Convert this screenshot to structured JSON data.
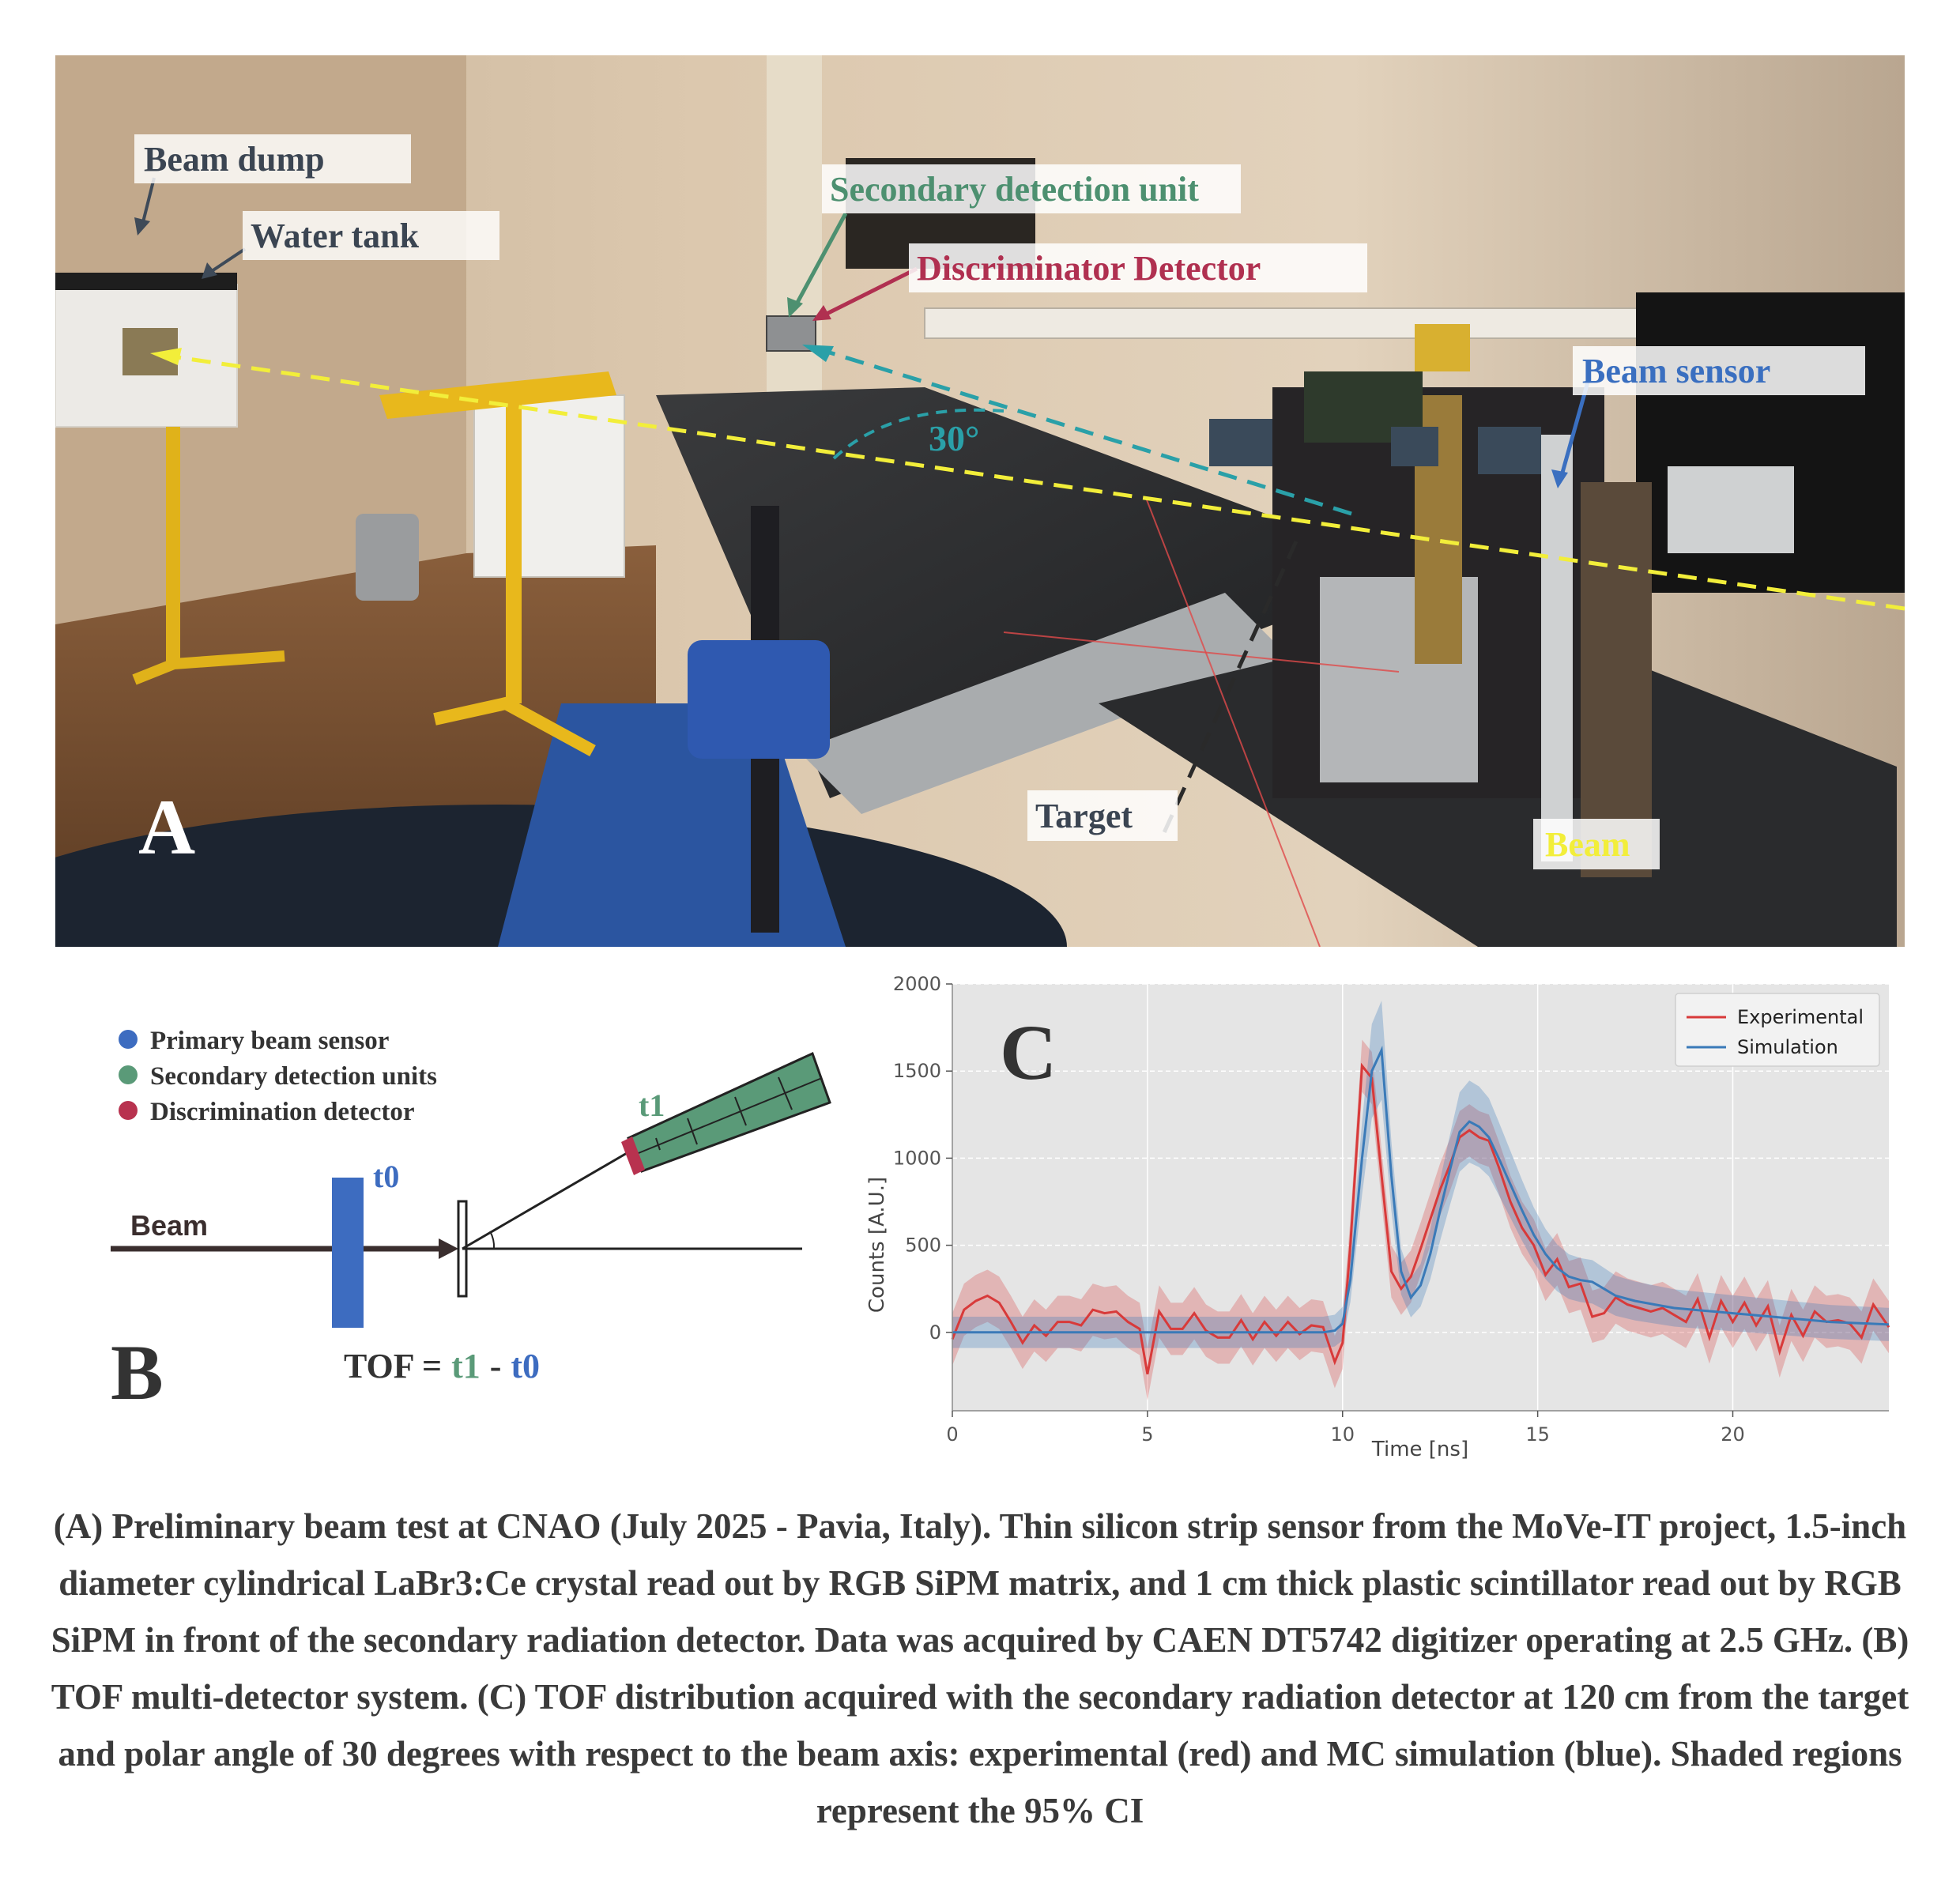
{
  "panel_a": {
    "letter": "A",
    "labels": {
      "beam_dump": "Beam dump",
      "water_tank": "Water tank",
      "secondary_unit": "Secondary detection unit",
      "discriminator": "Discriminator Detector",
      "beam_sensor": "Beam sensor",
      "angle": "30°",
      "target": "Target",
      "beam": "Beam"
    },
    "colors": {
      "secondary": "#4d9070",
      "discriminator": "#b03050",
      "beam_sensor": "#3a6fc0",
      "beam_axis": "#f2ee3a",
      "angle": "#2aa0a8"
    }
  },
  "panel_b": {
    "letter": "B",
    "legend": [
      {
        "label": "Primary beam sensor",
        "color": "#3d6cc0"
      },
      {
        "label": "Secondary detection units",
        "color": "#5a9a78"
      },
      {
        "label": "Discrimination detector",
        "color": "#b8324f"
      }
    ],
    "beam_label": "Beam",
    "t0": "t0",
    "t1": "t1",
    "tof_prefix": "TOF =",
    "tof_t1": "t1",
    "tof_minus": "-",
    "tof_t0": "t0"
  },
  "panel_c": {
    "letter": "C"
  },
  "chart_data": {
    "type": "line",
    "xlabel": "Time [ns]",
    "ylabel": "Counts [A.U.]",
    "xlim": [
      0,
      24
    ],
    "ylim": [
      -450,
      2000
    ],
    "xticks": [
      0,
      5,
      10,
      15,
      20
    ],
    "yticks": [
      0,
      500,
      1000,
      1500,
      2000
    ],
    "grid": true,
    "legend_position": "top-right",
    "series": [
      {
        "name": "Experimental",
        "color": "#d83a3a",
        "x": [
          0,
          0.3,
          0.6,
          0.9,
          1.2,
          1.5,
          1.8,
          2.1,
          2.4,
          2.7,
          3.0,
          3.3,
          3.6,
          3.9,
          4.2,
          4.5,
          4.8,
          5.0,
          5.3,
          5.6,
          5.9,
          6.2,
          6.5,
          6.8,
          7.1,
          7.4,
          7.7,
          8.0,
          8.3,
          8.6,
          8.9,
          9.2,
          9.5,
          9.8,
          10.0,
          10.2,
          10.5,
          10.75,
          11.0,
          11.25,
          11.5,
          11.75,
          12.0,
          12.25,
          12.5,
          12.75,
          13.0,
          13.25,
          13.5,
          13.75,
          14.0,
          14.3,
          14.6,
          14.9,
          15.2,
          15.5,
          15.8,
          16.1,
          16.4,
          16.7,
          17.0,
          17.3,
          17.6,
          17.9,
          18.2,
          18.5,
          18.8,
          19.1,
          19.4,
          19.7,
          20.0,
          20.3,
          20.6,
          20.9,
          21.2,
          21.5,
          21.8,
          22.1,
          22.4,
          22.7,
          23.0,
          23.3,
          23.6,
          24.0
        ],
        "y": [
          -40,
          130,
          180,
          210,
          170,
          60,
          -60,
          40,
          -20,
          60,
          60,
          40,
          130,
          110,
          120,
          60,
          20,
          -240,
          120,
          20,
          20,
          110,
          10,
          -30,
          -30,
          70,
          -40,
          60,
          -20,
          60,
          -10,
          40,
          30,
          -170,
          -60,
          500,
          1530,
          1460,
          900,
          350,
          250,
          320,
          480,
          650,
          820,
          960,
          1120,
          1160,
          1120,
          1100,
          950,
          750,
          600,
          500,
          330,
          420,
          260,
          280,
          90,
          110,
          200,
          160,
          140,
          120,
          140,
          100,
          60,
          190,
          -30,
          180,
          60,
          170,
          40,
          150,
          -110,
          100,
          -20,
          120,
          60,
          70,
          50,
          -30,
          160,
          30
        ]
      },
      {
        "name": "Simulation",
        "color": "#3a7ab8",
        "x": [
          0,
          1,
          2,
          3,
          4,
          5,
          6,
          7,
          8,
          9,
          9.5,
          9.8,
          10.0,
          10.2,
          10.5,
          10.75,
          11.0,
          11.25,
          11.5,
          11.75,
          12.0,
          12.25,
          12.5,
          12.75,
          13.0,
          13.25,
          13.5,
          13.75,
          14.0,
          14.3,
          14.6,
          14.9,
          15.2,
          15.5,
          15.8,
          16.1,
          16.4,
          16.7,
          17.0,
          17.5,
          18.0,
          18.5,
          19.0,
          19.5,
          20.0,
          20.5,
          21.0,
          21.5,
          22.0,
          22.5,
          23.0,
          23.5,
          24.0
        ],
        "y": [
          0,
          0,
          0,
          0,
          0,
          0,
          0,
          0,
          0,
          0,
          0,
          10,
          50,
          300,
          1000,
          1500,
          1620,
          900,
          350,
          200,
          270,
          450,
          700,
          930,
          1150,
          1210,
          1180,
          1120,
          1000,
          850,
          700,
          560,
          450,
          370,
          320,
          300,
          290,
          250,
          210,
          180,
          160,
          140,
          130,
          120,
          110,
          100,
          90,
          80,
          70,
          60,
          55,
          50,
          45
        ]
      }
    ]
  }
}
